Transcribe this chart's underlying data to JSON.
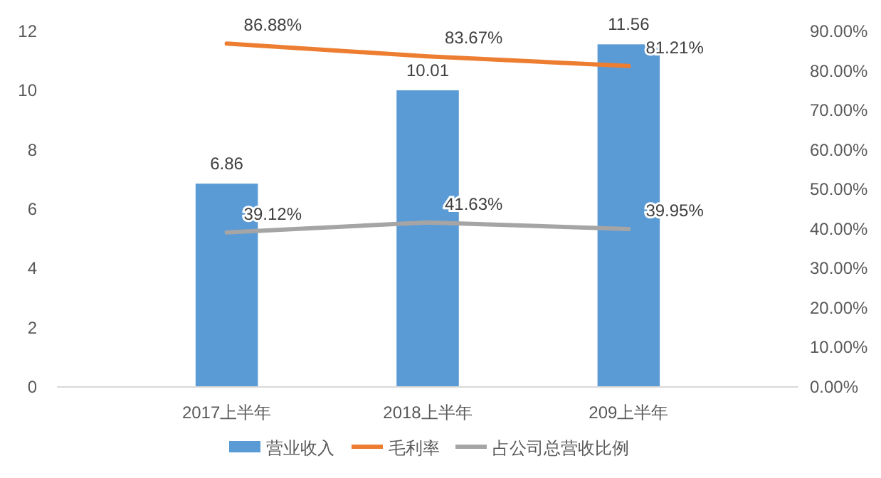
{
  "chart_data": {
    "type": "bar",
    "categories": [
      "2017上半年",
      "2018上半年",
      "209上半年"
    ],
    "series": [
      {
        "name": "营业收入",
        "color": "#5b9bd5",
        "values": [
          6.86,
          10.01,
          11.56
        ],
        "value_labels": [
          "6.86",
          "10.01",
          "11.56"
        ]
      },
      {
        "name": "毛利率",
        "type": "line",
        "axis": "y2",
        "color": "#ed7d31",
        "values": [
          86.88,
          83.67,
          81.21
        ],
        "value_labels": [
          "86.88%",
          "83.67%",
          "81.21%"
        ]
      },
      {
        "name": "占公司总营收比例",
        "type": "line",
        "axis": "y2",
        "color": "#a5a5a5",
        "values": [
          39.12,
          41.63,
          39.95
        ],
        "value_labels": [
          "39.12%",
          "41.63%",
          "39.95%"
        ]
      }
    ],
    "ylim": [
      0,
      12
    ],
    "yticks": [
      0,
      2,
      4,
      6,
      8,
      10,
      12
    ],
    "y2lim": [
      0,
      90
    ],
    "y2ticks": [
      {
        "value": 0,
        "label": "0.00%"
      },
      {
        "value": 10,
        "label": "10.00%"
      },
      {
        "value": 20,
        "label": "20.00%"
      },
      {
        "value": 30,
        "label": "30.00%"
      },
      {
        "value": 40,
        "label": "40.00%"
      },
      {
        "value": 50,
        "label": "50.00%"
      },
      {
        "value": 60,
        "label": "60.00%"
      },
      {
        "value": 70,
        "label": "70.00%"
      },
      {
        "value": 80,
        "label": "80.00%"
      },
      {
        "value": 90,
        "label": "90.00%"
      }
    ],
    "grid": false,
    "legend": "bottom",
    "marker": "none",
    "line_style": "solid"
  }
}
